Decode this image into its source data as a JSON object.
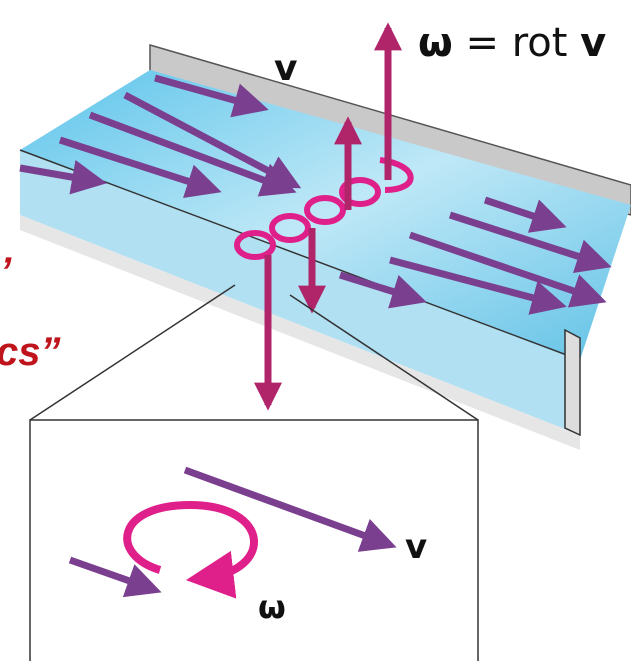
{
  "equation": {
    "omega": "ω",
    "equals": "= rot",
    "v": "v"
  },
  "flow_label": "v",
  "inset": {
    "velocity_label": "v",
    "vorticity_label": "ω"
  },
  "caption_fragments": [
    "’",
    "cs”"
  ]
}
